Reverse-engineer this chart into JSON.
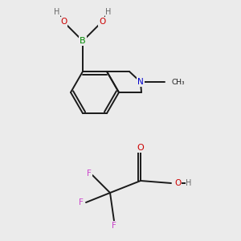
{
  "bg_color": "#ebebeb",
  "bond_color": "#1a1a1a",
  "colors": {
    "B": "#008800",
    "O": "#cc0000",
    "H": "#666666",
    "N": "#0000cc",
    "F": "#cc44cc"
  }
}
